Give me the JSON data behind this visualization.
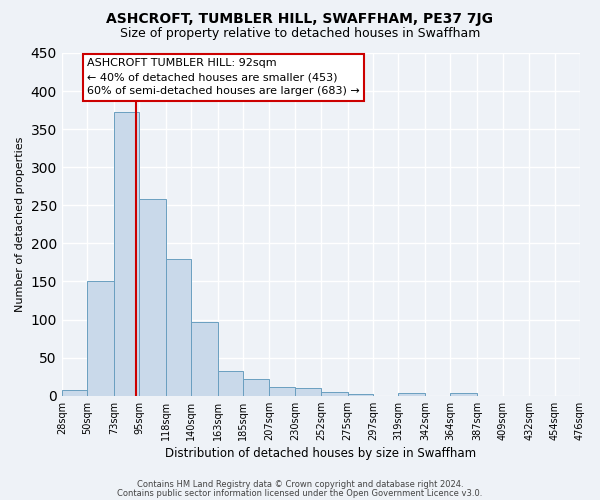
{
  "title": "ASHCROFT, TUMBLER HILL, SWAFFHAM, PE37 7JG",
  "subtitle": "Size of property relative to detached houses in Swaffham",
  "xlabel": "Distribution of detached houses by size in Swaffham",
  "ylabel": "Number of detached properties",
  "bin_labels": [
    "28sqm",
    "50sqm",
    "73sqm",
    "95sqm",
    "118sqm",
    "140sqm",
    "163sqm",
    "185sqm",
    "207sqm",
    "230sqm",
    "252sqm",
    "275sqm",
    "297sqm",
    "319sqm",
    "342sqm",
    "364sqm",
    "387sqm",
    "409sqm",
    "432sqm",
    "454sqm",
    "476sqm"
  ],
  "bin_edges": [
    28,
    50,
    73,
    95,
    118,
    140,
    163,
    185,
    207,
    230,
    252,
    275,
    297,
    319,
    342,
    364,
    387,
    409,
    432,
    454,
    476
  ],
  "bar_heights": [
    7,
    151,
    372,
    258,
    179,
    97,
    33,
    22,
    11,
    10,
    5,
    2,
    0,
    3,
    0,
    4,
    0,
    0,
    0,
    0
  ],
  "bar_color": "#c9d9ea",
  "bar_edge_color": "#6a9fc0",
  "property_size": 92,
  "vline_color": "#cc0000",
  "annotation_title": "ASHCROFT TUMBLER HILL: 92sqm",
  "annotation_line1": "← 40% of detached houses are smaller (453)",
  "annotation_line2": "60% of semi-detached houses are larger (683) →",
  "annotation_box_color": "#ffffff",
  "annotation_box_edge": "#cc0000",
  "ylim": [
    0,
    450
  ],
  "yticks": [
    0,
    50,
    100,
    150,
    200,
    250,
    300,
    350,
    400,
    450
  ],
  "footer1": "Contains HM Land Registry data © Crown copyright and database right 2024.",
  "footer2": "Contains public sector information licensed under the Open Government Licence v3.0.",
  "bg_color": "#eef2f7",
  "grid_color": "#ffffff"
}
